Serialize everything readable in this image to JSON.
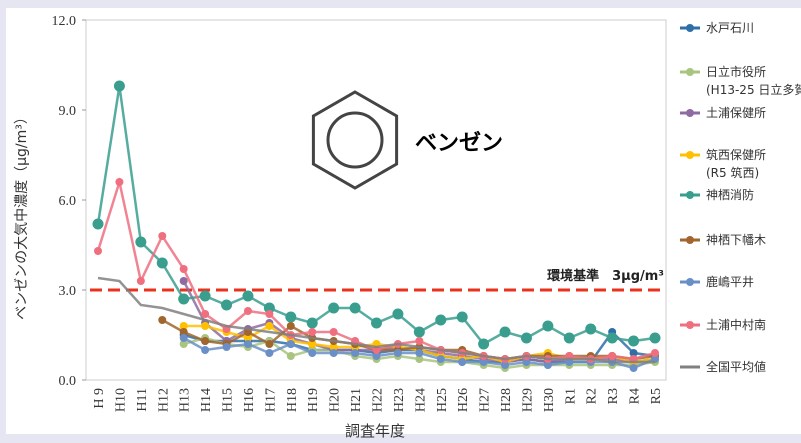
{
  "chart_data": {
    "type": "line",
    "annotation": "ベンゼン",
    "y_label": "ベンゼンの大気中濃度（μg/m³）",
    "x_label": "調査年度",
    "categories": [
      "H 9",
      "H10",
      "H11",
      "H12",
      "H13",
      "H14",
      "H15",
      "H16",
      "H17",
      "H18",
      "H19",
      "H20",
      "H21",
      "H22",
      "H23",
      "H24",
      "H25",
      "H26",
      "H27",
      "H28",
      "H29",
      "H30",
      "R1",
      "R2",
      "R3",
      "R4",
      "R5"
    ],
    "ylim": [
      0,
      12
    ],
    "yticks": [
      {
        "value": 0,
        "label": "0.0"
      },
      {
        "value": 3,
        "label": "3.0"
      },
      {
        "value": 6,
        "label": "6.0"
      },
      {
        "value": 9,
        "label": "9.0"
      },
      {
        "value": 12,
        "label": "12.0"
      }
    ],
    "reference_line": {
      "value": 3,
      "label": "環境基準　3μg/m³",
      "color": "#e8321e"
    },
    "legend_position": "right",
    "series": [
      {
        "name": "水戸石川",
        "color": "#2f6fa8",
        "values": [
          null,
          null,
          null,
          null,
          1.5,
          1.3,
          1.3,
          1.3,
          1.3,
          1.2,
          1.0,
          1.0,
          1.0,
          0.9,
          1.0,
          1.0,
          0.8,
          0.7,
          0.6,
          0.6,
          0.7,
          0.6,
          0.6,
          0.6,
          1.6,
          0.9,
          0.8
        ]
      },
      {
        "name": "日立市役所",
        "note": "(H13-25 日立多賀",
        "color": "#a9c47f",
        "values": [
          null,
          null,
          null,
          null,
          1.2,
          1.4,
          1.2,
          1.1,
          1.3,
          0.8,
          1.0,
          1.0,
          0.8,
          0.7,
          0.8,
          0.7,
          0.6,
          0.6,
          0.5,
          0.4,
          0.5,
          0.5,
          0.5,
          0.5,
          0.5,
          0.5,
          0.6
        ]
      },
      {
        "name": "土浦保健所",
        "color": "#8e6ba0",
        "values": [
          null,
          null,
          null,
          null,
          3.3,
          1.9,
          1.3,
          1.7,
          1.9,
          1.4,
          1.2,
          1.0,
          1.0,
          1.0,
          1.1,
          1.0,
          0.9,
          0.8,
          0.7,
          0.6,
          0.7,
          0.6,
          0.7,
          0.7,
          0.7,
          0.6,
          0.7
        ]
      },
      {
        "name": "筑西保健所",
        "note": "(R5 筑西)",
        "color": "#ffc000",
        "values": [
          null,
          null,
          null,
          null,
          1.8,
          1.8,
          1.6,
          1.4,
          1.8,
          1.3,
          1.2,
          1.1,
          1.1,
          1.2,
          1.1,
          1.0,
          0.8,
          0.7,
          0.8,
          0.6,
          0.8,
          0.9,
          0.7,
          0.7,
          0.8,
          0.6,
          0.7
        ]
      },
      {
        "name": "神栖消防",
        "color": "#3a9e8f",
        "values": [
          5.2,
          9.8,
          4.6,
          3.9,
          2.7,
          2.8,
          2.5,
          2.8,
          2.4,
          2.1,
          1.9,
          2.4,
          2.4,
          1.9,
          2.2,
          1.6,
          2.0,
          2.1,
          1.2,
          1.6,
          1.4,
          1.8,
          1.4,
          1.7,
          1.4,
          1.3,
          1.4
        ]
      },
      {
        "name": "神栖下幡木",
        "color": "#a0662e",
        "values": [
          null,
          null,
          null,
          2.0,
          1.6,
          1.3,
          1.2,
          1.6,
          1.2,
          1.8,
          1.4,
          1.3,
          1.2,
          1.0,
          1.0,
          1.1,
          1.0,
          1.0,
          0.8,
          0.7,
          0.8,
          0.8,
          0.8,
          0.8,
          0.8,
          0.7,
          0.8
        ]
      },
      {
        "name": "鹿嶋平井",
        "color": "#6a8fc7",
        "values": [
          null,
          null,
          null,
          null,
          1.4,
          1.0,
          1.1,
          1.2,
          0.9,
          1.2,
          0.9,
          0.9,
          0.9,
          0.8,
          0.9,
          0.9,
          0.7,
          0.6,
          0.6,
          0.5,
          0.6,
          0.5,
          0.6,
          0.6,
          0.6,
          0.4,
          0.7
        ]
      },
      {
        "name": "土浦中村南",
        "color": "#ef6f7f",
        "values": [
          4.3,
          6.6,
          3.3,
          4.8,
          3.7,
          2.2,
          1.7,
          2.3,
          2.2,
          1.5,
          1.6,
          1.6,
          1.3,
          1.0,
          1.2,
          1.3,
          1.0,
          0.9,
          0.8,
          0.7,
          0.8,
          0.7,
          0.8,
          0.7,
          0.8,
          0.7,
          0.9
        ]
      },
      {
        "name": "全国平均値",
        "color": "#808080",
        "markers": false,
        "values": [
          3.4,
          3.3,
          2.5,
          2.4,
          2.2,
          2.0,
          1.8,
          1.7,
          1.6,
          1.5,
          1.4,
          1.3,
          1.2,
          1.1,
          1.2,
          1.1,
          1.0,
          0.9,
          0.8,
          0.7,
          0.8,
          0.7,
          0.7,
          0.7,
          0.6,
          0.6,
          0.6
        ]
      }
    ]
  }
}
